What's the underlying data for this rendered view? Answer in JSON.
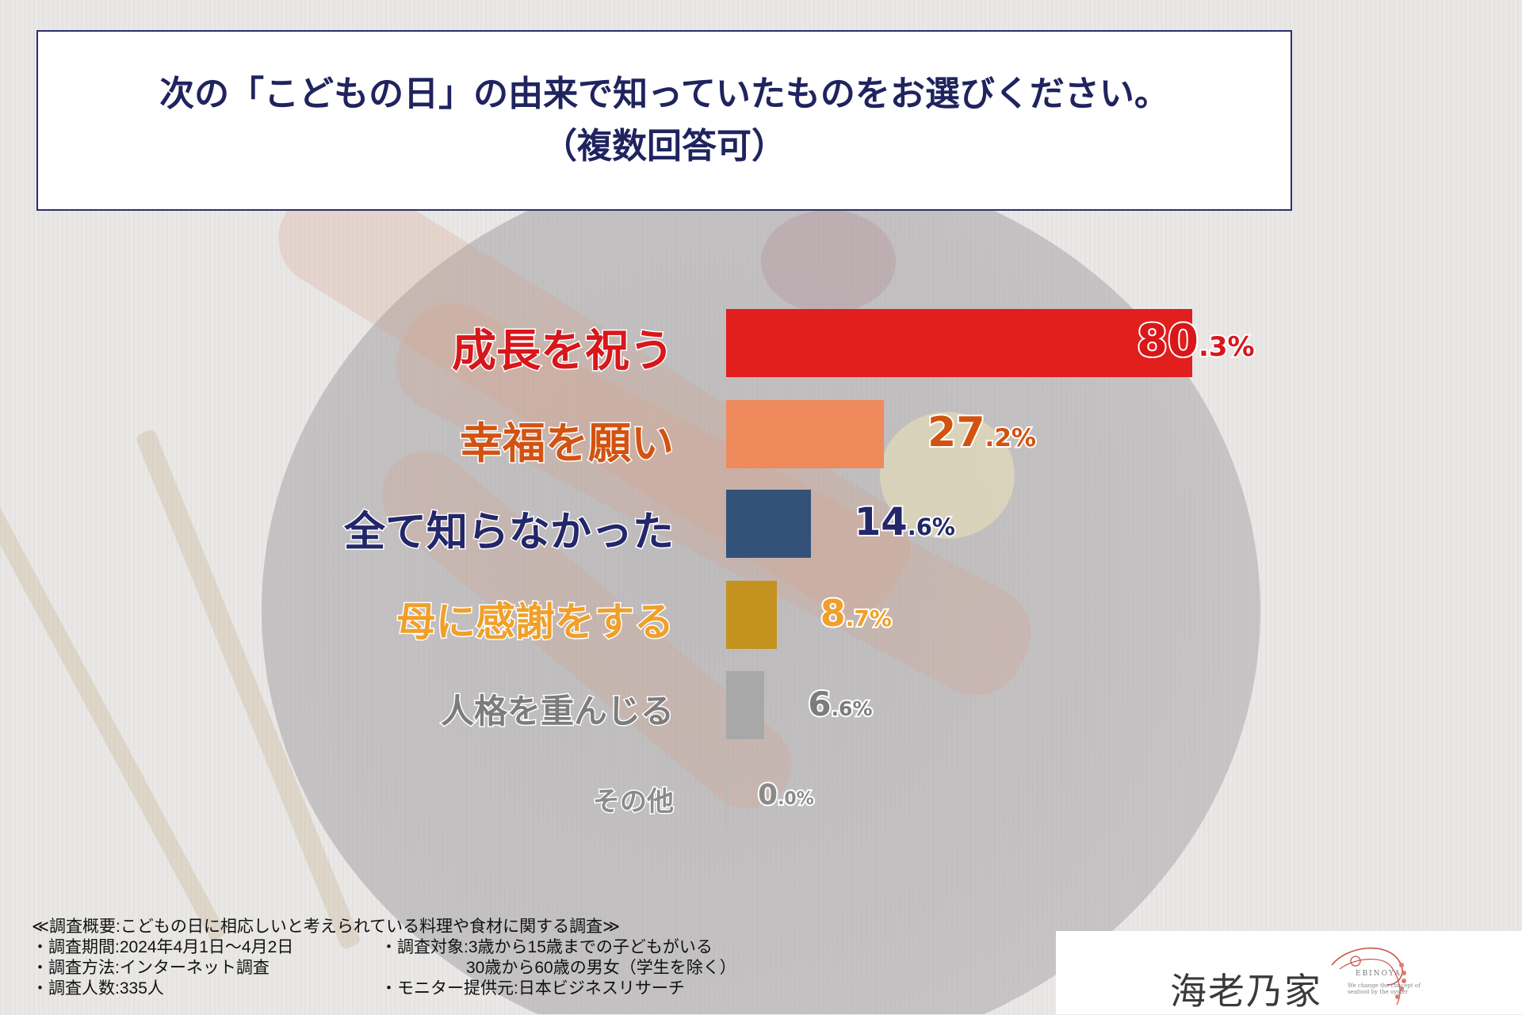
{
  "title": {
    "line1": "次の「こどもの日」の由来で知っていたものをお選びください。",
    "line2": "（複数回答可）"
  },
  "chart_data": {
    "type": "bar",
    "orientation": "horizontal",
    "categories": [
      "成長を祝う",
      "幸福を願い",
      "全て知らなかった",
      "母に感謝をする",
      "人格を重んじる",
      "その他"
    ],
    "values": [
      80.3,
      27.2,
      14.6,
      8.7,
      6.6,
      0.0
    ],
    "value_labels": [
      {
        "int": "80",
        "dec": ".3%"
      },
      {
        "int": "27",
        "dec": ".2%"
      },
      {
        "int": "14",
        "dec": ".6%"
      },
      {
        "int": "8",
        "dec": ".7%"
      },
      {
        "int": "6",
        "dec": ".6%"
      },
      {
        "int": "0",
        "dec": ".0%"
      }
    ],
    "colors": [
      "#e11f1c",
      "#ee8a5b",
      "#32527a",
      "#c4931f",
      "#a8a8a8",
      "#b9b9b9"
    ],
    "label_colors": [
      "#d8171b",
      "#d25310",
      "#23276a",
      "#f0a02a",
      "#7c7c7c",
      "#8a8a8a"
    ]
  },
  "notes": {
    "heading": "≪調査概要:こどもの日に相応しいと考えられている料理や食材に関する調査≫",
    "period": "・調査期間:2024年4月1日～4月2日",
    "method": "・調査方法:インターネット調査",
    "count": "・調査人数:335人",
    "target1": "・調査対象:3歳から15歳までの子どもがいる",
    "target2": "30歳から60歳の男女（学生を除く）",
    "monitor": "・モニター提供元:日本ビジネスリサーチ"
  },
  "brand": {
    "name": "海老乃家",
    "sub": "EBINOYA",
    "tagline": "We change the concept of seafood by the oyster"
  }
}
